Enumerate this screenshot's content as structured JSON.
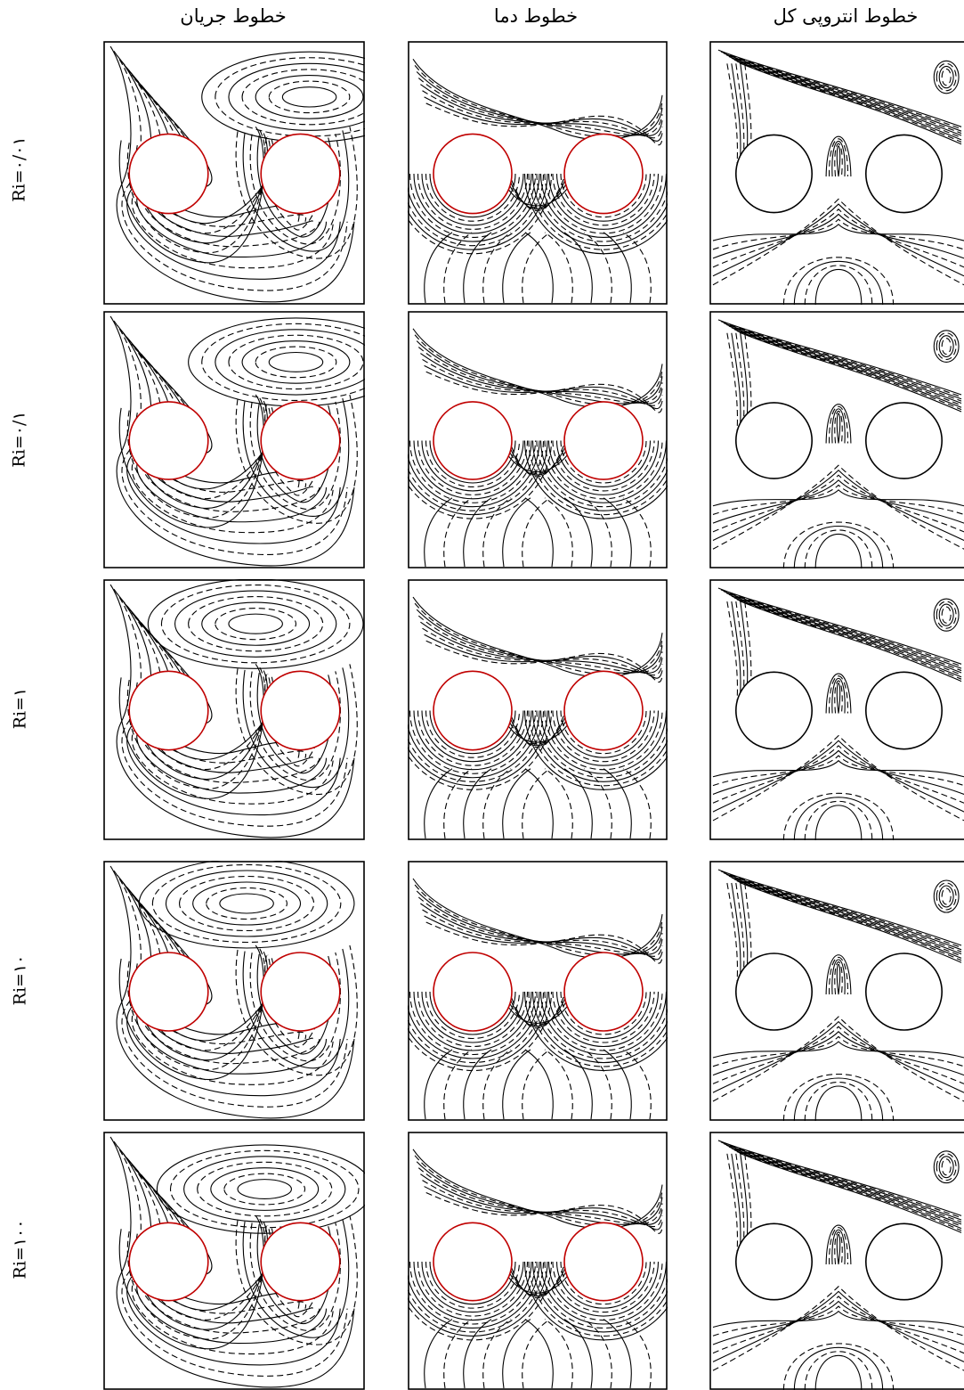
{
  "columns": [
    {
      "key": "streamlines",
      "title": "خطوط جریان"
    },
    {
      "key": "isotherms",
      "title": "خطوط دما"
    },
    {
      "key": "entropy",
      "title": "خطوط انتروپی کل"
    }
  ],
  "rows": [
    {
      "label": "Ri=۰/۰۱"
    },
    {
      "label": "Ri=۰/۱"
    },
    {
      "label": "Ri=۱"
    },
    {
      "label": "Ri=۱۰"
    },
    {
      "label": "Ri=۱۰۰"
    }
  ],
  "colors": {
    "cylinder_stream_temp": "#c00000",
    "cylinder_entropy": "#000000",
    "contour": "#000000"
  }
}
